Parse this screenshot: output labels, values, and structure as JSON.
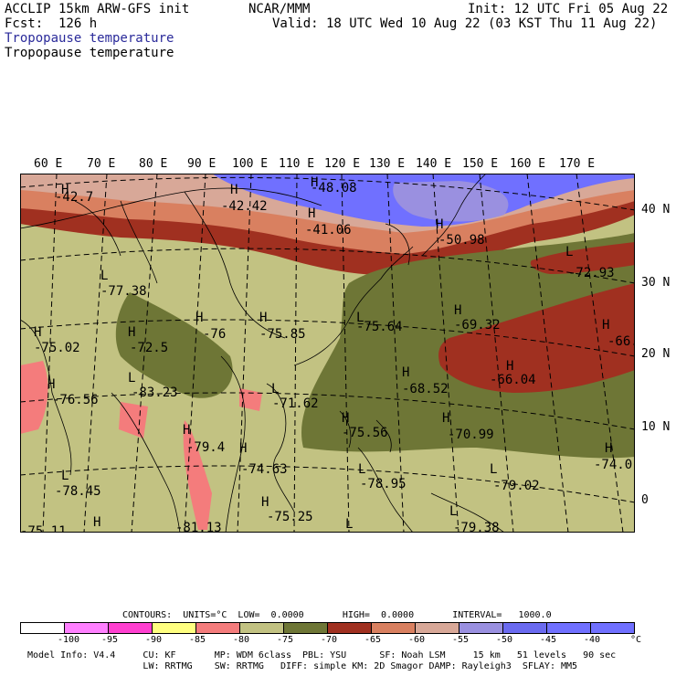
{
  "header": {
    "model": "ACCLIP 15km ARW-GFS init",
    "fcst": "Fcst:  126 h",
    "center": "NCAR/MMM",
    "init": "Init: 12 UTC Fri 05 Aug 22",
    "valid": "Valid: 18 UTC Wed 10 Aug 22 (03 KST Thu 11 Aug 22)",
    "field1": "Tropopause temperature",
    "field2": "Tropopause temperature"
  },
  "lon_labels": [
    "60 E",
    "70 E",
    "80 E",
    "90 E",
    "100 E",
    "110 E",
    "120 E",
    "130 E",
    "140 E",
    "150 E",
    "160 E",
    "170 E"
  ],
  "lat_labels": [
    "40 N",
    "30 N",
    "20 N",
    "10 N",
    "0"
  ],
  "map_labels": {
    "h1": "H",
    "v1": "-42.7",
    "h2": "H",
    "v2": "-42.42",
    "h3": "H",
    "v3": "-48.08",
    "h4": "H",
    "v4": "-41.06",
    "h5": "H",
    "v5": "-50.98",
    "l1": "L",
    "v6": "-72.93",
    "l2": "L",
    "v7": "-77.38",
    "h6": "H",
    "v8": "-76",
    "h7": "H",
    "v9": "-75.85",
    "l3": "L",
    "v10": "-75.64",
    "h8": "H",
    "v11": "-69.32",
    "h9": "H",
    "v12": "-66.",
    "h10": "H",
    "v13": "-75.02",
    "h11": "H",
    "v14": "-72.5",
    "h12": "H",
    "v15": "-66.04",
    "h13": "H",
    "v16": "-76.56",
    "l4": "L",
    "v17": "-83.23",
    "l5": "L",
    "v18": "-71.62",
    "h14": "H",
    "v19": "-68.52",
    "h15": "H",
    "v20": "-75.56",
    "h16": "H",
    "v21": "-70.99",
    "h17": "H",
    "v22": "-79.4",
    "h18": "H",
    "v23": "-74.63",
    "l6": "L",
    "v24": "-78.45",
    "l7": "L",
    "v25": "-78.95",
    "l8": "L",
    "v26": "-79.02",
    "h19": "H",
    "v27": "-74.0",
    "h20": "H",
    "v28": "-75.25",
    "l9": "L",
    "v29": "-79.38",
    "v30": "-75.11",
    "h21": "H",
    "v31": "-81.13",
    "l10": "L"
  },
  "contours": "CONTOURS:  UNITS=°C  LOW=  0.0000       HIGH=  0.0000       INTERVAL=   1000.0",
  "colorbar": {
    "colors": [
      "#ffffff",
      "#ff80ff",
      "#ff40d0",
      "#ffff80",
      "#f47c7c",
      "#c2c282",
      "#6e7636",
      "#a03020",
      "#d98060",
      "#d8a898",
      "#9a90e0",
      "#6a6af0",
      "#7070ff",
      "#7070ff"
    ],
    "ticks": [
      "-100",
      "-95",
      "-90",
      "-85",
      "-80",
      "-75",
      "-70",
      "-65",
      "-60",
      "-55",
      "-50",
      "-45",
      "-40",
      "°C"
    ]
  },
  "footer": {
    "line1": "Model Info: V4.4     CU: KF       MP: WDM 6class  PBL: YSU      SF: Noah LSM     15 km   51 levels   90 sec",
    "line2": "                     LW: RRTMG    SW: RRTMG   DIFF: simple KM: 2D Smagor DAMP: Rayleigh3  SFLAY: MM5"
  }
}
